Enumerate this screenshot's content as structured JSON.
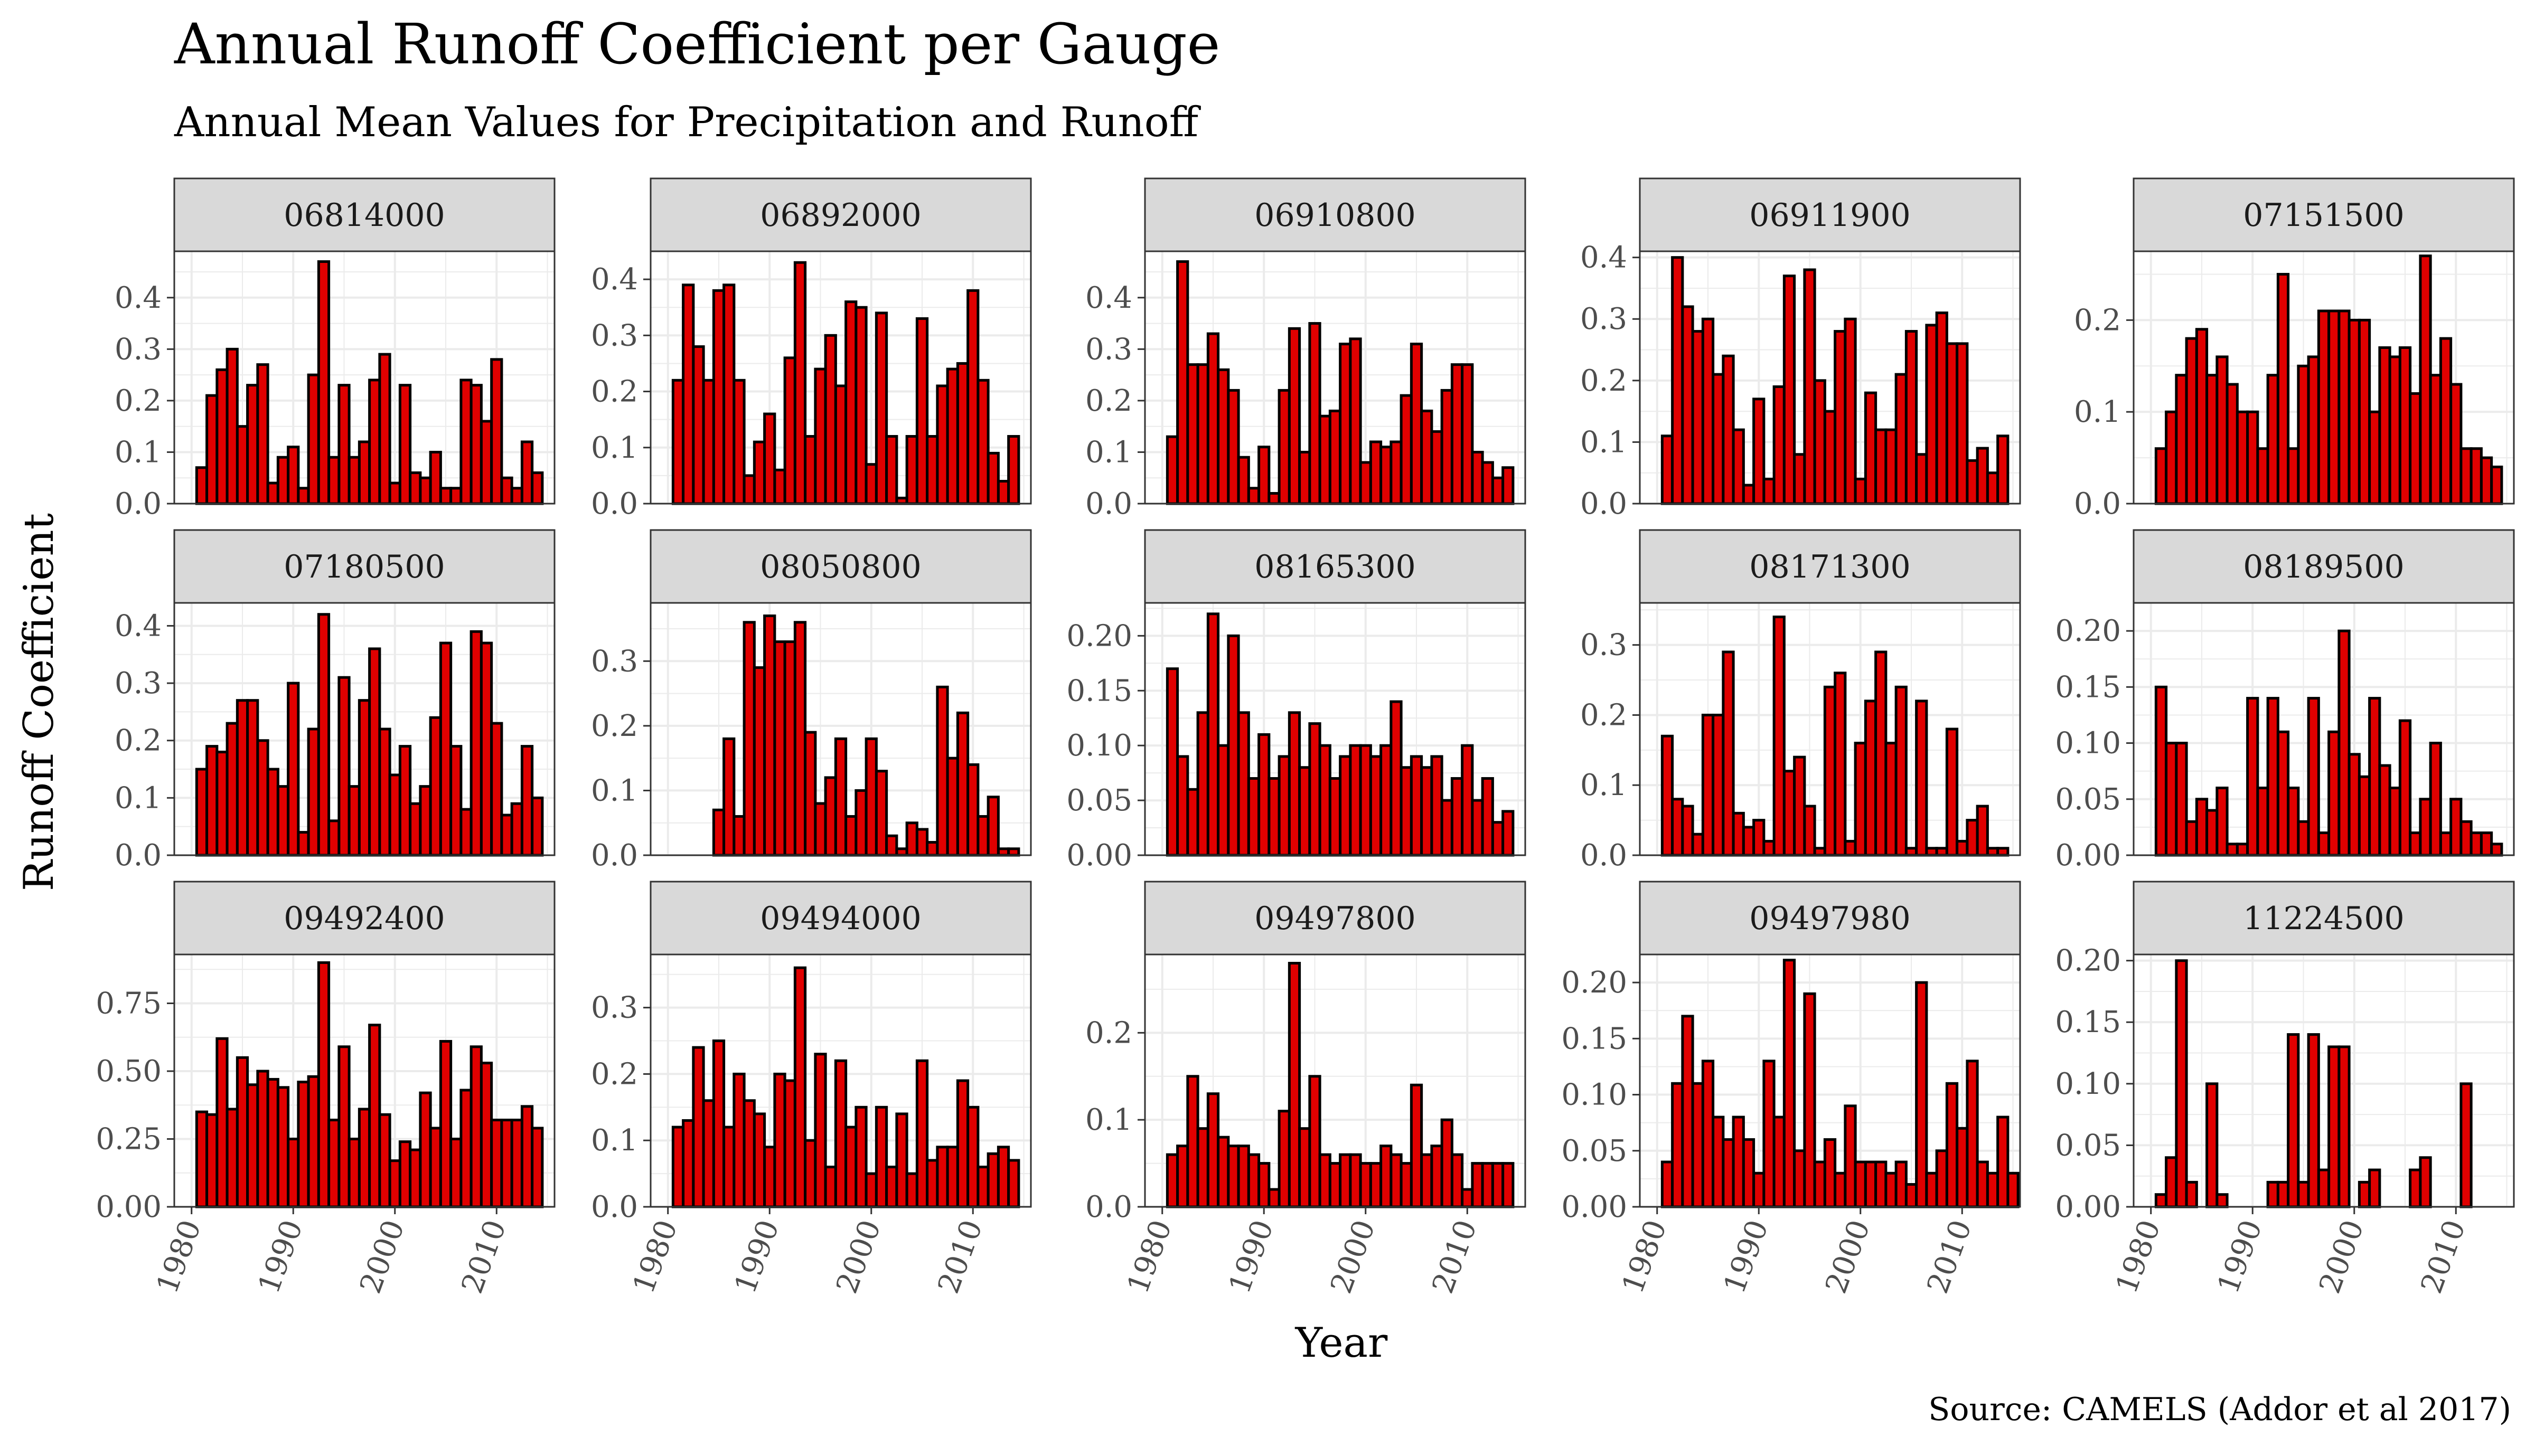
{
  "title": "Annual Runoff Coefficient per Gauge",
  "subtitle": "Annual Mean Values for Precipitation and Runoff",
  "xlabel": "Year",
  "ylabel": "Runoff Coefficient",
  "caption": "Source: CAMELS (Addor et al 2017)",
  "colors": {
    "bar_fill": "#e00000",
    "bar_stroke": "#000000",
    "strip_fill": "#d9d9d9",
    "grid": "#ebebeb"
  },
  "chart_data": {
    "type": "bar",
    "facet": "gauge",
    "xlabel": "Year",
    "ylabel": "Runoff Coefficient",
    "xlim": [
      1980,
      2014
    ],
    "x_ticks": [
      1980,
      1990,
      2000,
      2010
    ],
    "grid": true,
    "panels": [
      {
        "gauge": "06814000",
        "start_year": 1981,
        "yticks": [
          0.0,
          0.1,
          0.2,
          0.3,
          0.4
        ],
        "tick_labels": [
          "0.0",
          "0.1",
          "0.2",
          "0.3",
          "0.4"
        ],
        "ylim": [
          0,
          0.49
        ],
        "values": [
          0.07,
          0.21,
          0.26,
          0.3,
          0.15,
          0.23,
          0.27,
          0.04,
          0.09,
          0.11,
          0.03,
          0.25,
          0.47,
          0.09,
          0.23,
          0.09,
          0.12,
          0.24,
          0.29,
          0.04,
          0.23,
          0.06,
          0.05,
          0.1,
          0.03,
          0.03,
          0.24,
          0.23,
          0.16,
          0.28,
          0.05,
          0.03,
          0.12,
          0.06
        ]
      },
      {
        "gauge": "06892000",
        "start_year": 1981,
        "yticks": [
          0.0,
          0.1,
          0.2,
          0.3,
          0.4
        ],
        "tick_labels": [
          "0.0",
          "0.1",
          "0.2",
          "0.3",
          "0.4"
        ],
        "ylim": [
          0,
          0.45
        ],
        "values": [
          0.22,
          0.39,
          0.28,
          0.22,
          0.38,
          0.39,
          0.22,
          0.05,
          0.11,
          0.16,
          0.06,
          0.26,
          0.43,
          0.12,
          0.24,
          0.3,
          0.21,
          0.36,
          0.35,
          0.07,
          0.34,
          0.12,
          0.01,
          0.12,
          0.33,
          0.12,
          0.21,
          0.24,
          0.25,
          0.38,
          0.22,
          0.09,
          0.04,
          0.12
        ]
      },
      {
        "gauge": "06910800",
        "start_year": 1981,
        "yticks": [
          0.0,
          0.1,
          0.2,
          0.3,
          0.4
        ],
        "tick_labels": [
          "0.0",
          "0.1",
          "0.2",
          "0.3",
          "0.4"
        ],
        "ylim": [
          0,
          0.49
        ],
        "values": [
          0.13,
          0.47,
          0.27,
          0.27,
          0.33,
          0.26,
          0.22,
          0.09,
          0.03,
          0.11,
          0.02,
          0.22,
          0.34,
          0.1,
          0.35,
          0.17,
          0.18,
          0.31,
          0.32,
          0.08,
          0.12,
          0.11,
          0.12,
          0.21,
          0.31,
          0.18,
          0.14,
          0.22,
          0.27,
          0.27,
          0.1,
          0.08,
          0.05,
          0.07
        ]
      },
      {
        "gauge": "06911900",
        "start_year": 1981,
        "yticks": [
          0.0,
          0.1,
          0.2,
          0.3,
          0.4
        ],
        "tick_labels": [
          "0.0",
          "0.1",
          "0.2",
          "0.3",
          "0.4"
        ],
        "ylim": [
          0,
          0.41
        ],
        "values": [
          0.11,
          0.4,
          0.32,
          0.28,
          0.3,
          0.21,
          0.24,
          0.12,
          0.03,
          0.17,
          0.04,
          0.19,
          0.37,
          0.08,
          0.38,
          0.2,
          0.15,
          0.28,
          0.3,
          0.04,
          0.18,
          0.12,
          0.12,
          0.21,
          0.28,
          0.08,
          0.29,
          0.31,
          0.26,
          0.26,
          0.07,
          0.09,
          0.05,
          0.11
        ]
      },
      {
        "gauge": "07151500",
        "start_year": 1981,
        "yticks": [
          0.0,
          0.1,
          0.2
        ],
        "tick_labels": [
          "0.0",
          "0.1",
          "0.2"
        ],
        "ylim": [
          0,
          0.275
        ],
        "values": [
          0.06,
          0.1,
          0.14,
          0.18,
          0.19,
          0.14,
          0.16,
          0.13,
          0.1,
          0.1,
          0.06,
          0.14,
          0.25,
          0.06,
          0.15,
          0.16,
          0.21,
          0.21,
          0.21,
          0.2,
          0.2,
          0.1,
          0.17,
          0.16,
          0.17,
          0.12,
          0.27,
          0.14,
          0.18,
          0.13,
          0.06,
          0.06,
          0.05,
          0.04
        ]
      },
      {
        "gauge": "07180500",
        "start_year": 1981,
        "yticks": [
          0.0,
          0.1,
          0.2,
          0.3,
          0.4
        ],
        "tick_labels": [
          "0.0",
          "0.1",
          "0.2",
          "0.3",
          "0.4"
        ],
        "ylim": [
          0,
          0.44
        ],
        "values": [
          0.15,
          0.19,
          0.18,
          0.23,
          0.27,
          0.27,
          0.2,
          0.15,
          0.12,
          0.3,
          0.04,
          0.22,
          0.42,
          0.06,
          0.31,
          0.12,
          0.27,
          0.36,
          0.22,
          0.14,
          0.19,
          0.09,
          0.12,
          0.24,
          0.37,
          0.19,
          0.08,
          0.39,
          0.37,
          0.23,
          0.07,
          0.09,
          0.19,
          0.1
        ]
      },
      {
        "gauge": "08050800",
        "start_year": 1981,
        "yticks": [
          0.0,
          0.1,
          0.2,
          0.3
        ],
        "tick_labels": [
          "0.0",
          "0.1",
          "0.2",
          "0.3"
        ],
        "ylim": [
          0,
          0.39
        ],
        "values": [
          0,
          0,
          0,
          0,
          0.07,
          0.18,
          0.06,
          0.36,
          0.29,
          0.37,
          0.33,
          0.33,
          0.36,
          0.19,
          0.08,
          0.12,
          0.18,
          0.06,
          0.1,
          0.18,
          0.13,
          0.03,
          0.01,
          0.05,
          0.04,
          0.02,
          0.26,
          0.15,
          0.22,
          0.14,
          0.06,
          0.09,
          0.01,
          0.01
        ]
      },
      {
        "gauge": "08165300",
        "start_year": 1981,
        "yticks": [
          0.0,
          0.05,
          0.1,
          0.15,
          0.2
        ],
        "tick_labels": [
          "0.00",
          "0.05",
          "0.10",
          "0.15",
          "0.20"
        ],
        "ylim": [
          0,
          0.23
        ],
        "values": [
          0.17,
          0.09,
          0.06,
          0.13,
          0.22,
          0.1,
          0.2,
          0.13,
          0.07,
          0.11,
          0.07,
          0.09,
          0.13,
          0.08,
          0.12,
          0.1,
          0.07,
          0.09,
          0.1,
          0.1,
          0.09,
          0.1,
          0.14,
          0.08,
          0.09,
          0.08,
          0.09,
          0.05,
          0.07,
          0.1,
          0.05,
          0.07,
          0.03,
          0.04
        ]
      },
      {
        "gauge": "08171300",
        "start_year": 1981,
        "yticks": [
          0.0,
          0.1,
          0.2,
          0.3
        ],
        "tick_labels": [
          "0.0",
          "0.1",
          "0.2",
          "0.3"
        ],
        "ylim": [
          0,
          0.36
        ],
        "values": [
          0.17,
          0.08,
          0.07,
          0.03,
          0.2,
          0.2,
          0.29,
          0.06,
          0.04,
          0.05,
          0.02,
          0.34,
          0.12,
          0.14,
          0.07,
          0.01,
          0.24,
          0.26,
          0.02,
          0.16,
          0.22,
          0.29,
          0.16,
          0.24,
          0.01,
          0.22,
          0.01,
          0.01,
          0.18,
          0.02,
          0.05,
          0.07,
          0.01,
          0.01
        ]
      },
      {
        "gauge": "08189500",
        "start_year": 1981,
        "yticks": [
          0.0,
          0.05,
          0.1,
          0.15,
          0.2
        ],
        "tick_labels": [
          "0.00",
          "0.05",
          "0.10",
          "0.15",
          "0.20"
        ],
        "ylim": [
          0,
          0.225
        ],
        "values": [
          0.15,
          0.1,
          0.1,
          0.03,
          0.05,
          0.04,
          0.06,
          0.01,
          0.01,
          0.14,
          0.06,
          0.14,
          0.11,
          0.06,
          0.03,
          0.14,
          0.02,
          0.11,
          0.2,
          0.09,
          0.07,
          0.14,
          0.08,
          0.06,
          0.12,
          0.02,
          0.05,
          0.1,
          0.02,
          0.05,
          0.03,
          0.02,
          0.02,
          0.01
        ]
      },
      {
        "gauge": "09492400",
        "start_year": 1981,
        "yticks": [
          0.0,
          0.25,
          0.5,
          0.75
        ],
        "tick_labels": [
          "0.00",
          "0.25",
          "0.50",
          "0.75"
        ],
        "ylim": [
          0,
          0.93
        ],
        "values": [
          0.35,
          0.34,
          0.62,
          0.36,
          0.55,
          0.45,
          0.5,
          0.47,
          0.44,
          0.25,
          0.46,
          0.48,
          0.9,
          0.32,
          0.59,
          0.25,
          0.36,
          0.67,
          0.34,
          0.17,
          0.24,
          0.21,
          0.42,
          0.29,
          0.61,
          0.25,
          0.43,
          0.59,
          0.53,
          0.32,
          0.32,
          0.32,
          0.37,
          0.29
        ]
      },
      {
        "gauge": "09494000",
        "start_year": 1981,
        "yticks": [
          0.0,
          0.1,
          0.2,
          0.3
        ],
        "tick_labels": [
          "0.0",
          "0.1",
          "0.2",
          "0.3"
        ],
        "ylim": [
          0,
          0.38
        ],
        "values": [
          0.12,
          0.13,
          0.24,
          0.16,
          0.25,
          0.12,
          0.2,
          0.16,
          0.14,
          0.09,
          0.2,
          0.19,
          0.36,
          0.1,
          0.23,
          0.06,
          0.22,
          0.12,
          0.15,
          0.05,
          0.15,
          0.06,
          0.14,
          0.05,
          0.22,
          0.07,
          0.09,
          0.09,
          0.19,
          0.15,
          0.06,
          0.08,
          0.09,
          0.07
        ]
      },
      {
        "gauge": "09497800",
        "start_year": 1981,
        "yticks": [
          0.0,
          0.1,
          0.2
        ],
        "tick_labels": [
          "0.0",
          "0.1",
          "0.2"
        ],
        "ylim": [
          0,
          0.29
        ],
        "values": [
          0.06,
          0.07,
          0.15,
          0.09,
          0.13,
          0.08,
          0.07,
          0.07,
          0.06,
          0.05,
          0.02,
          0.11,
          0.28,
          0.09,
          0.15,
          0.06,
          0.05,
          0.06,
          0.06,
          0.05,
          0.05,
          0.07,
          0.06,
          0.05,
          0.14,
          0.06,
          0.07,
          0.1,
          0.06,
          0.02,
          0.05,
          0.05,
          0.05,
          0.05
        ]
      },
      {
        "gauge": "09497980",
        "start_year": 1981,
        "yticks": [
          0.0,
          0.05,
          0.1,
          0.15,
          0.2
        ],
        "tick_labels": [
          "0.00",
          "0.05",
          "0.10",
          "0.15",
          "0.20"
        ],
        "ylim": [
          0,
          0.225
        ],
        "values": [
          0.04,
          0.11,
          0.17,
          0.11,
          0.13,
          0.08,
          0.06,
          0.08,
          0.06,
          0.03,
          0.13,
          0.08,
          0.22,
          0.05,
          0.19,
          0.04,
          0.06,
          0.03,
          0.09,
          0.04,
          0.04,
          0.04,
          0.03,
          0.04,
          0.02,
          0.2,
          0.03,
          0.05,
          0.11,
          0.07,
          0.13,
          0.04,
          0.03,
          0.08,
          0.03
        ]
      },
      {
        "gauge": "11224500",
        "start_year": 1981,
        "yticks": [
          0.0,
          0.05,
          0.1,
          0.15,
          0.2
        ],
        "tick_labels": [
          "0.00",
          "0.05",
          "0.10",
          "0.15",
          "0.20"
        ],
        "ylim": [
          0,
          0.205
        ],
        "values": [
          0.01,
          0.04,
          0.2,
          0.02,
          0.0,
          0.1,
          0.01,
          0.0,
          0.0,
          0.0,
          0.0,
          0.02,
          0.02,
          0.14,
          0.02,
          0.14,
          0.03,
          0.13,
          0.13,
          0.0,
          0.02,
          0.03,
          0.0,
          0.0,
          0.0,
          0.03,
          0.04,
          0.0,
          0.0,
          0.0,
          0.1,
          0.0,
          0.0,
          0.0
        ]
      }
    ]
  }
}
